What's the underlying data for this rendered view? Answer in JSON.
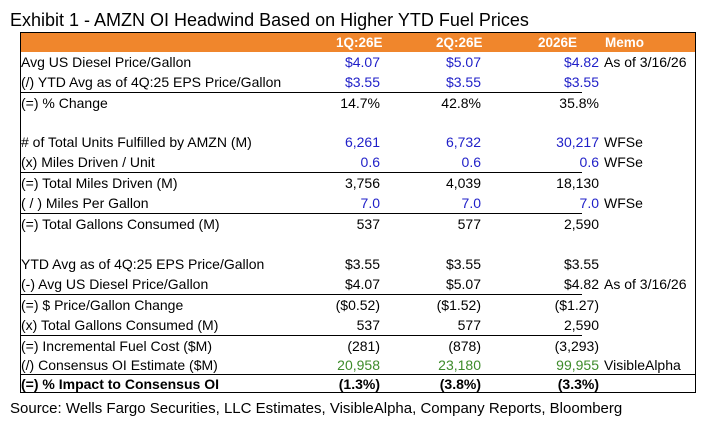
{
  "title": "Exhibit 1 - AMZN OI Headwind Based on Higher YTD Fuel Prices",
  "header": {
    "c1": "1Q:26E",
    "c2": "2Q:26E",
    "c3": "2026E",
    "memo": "Memo"
  },
  "colors": {
    "header_bg": "#f0862c",
    "input_blue": "#1f1fc8",
    "consensus_green": "#3d8b2a"
  },
  "rows": [
    {
      "label": "Avg US Diesel Price/Gallon",
      "v1": "$4.07",
      "v2": "$5.07",
      "v3": "$4.82",
      "memo": "As of 3/16/26"
    },
    {
      "label": "(/) YTD Avg as of 4Q:25 EPS Price/Gallon",
      "v1": "$3.55",
      "v2": "$3.55",
      "v3": "$3.55",
      "memo": ""
    },
    {
      "label": "(=) % Change",
      "v1": "14.7%",
      "v2": "42.8%",
      "v3": "35.8%",
      "memo": ""
    },
    {
      "label": "# of Total Units Fulfilled by AMZN (M)",
      "v1": "6,261",
      "v2": "6,732",
      "v3": "30,217",
      "memo": "WFSe"
    },
    {
      "label": "(x) Miles Driven / Unit",
      "v1": "0.6",
      "v2": "0.6",
      "v3": "0.6",
      "memo": "WFSe"
    },
    {
      "label": "(=) Total Miles Driven (M)",
      "v1": "3,756",
      "v2": "4,039",
      "v3": "18,130",
      "memo": ""
    },
    {
      "label": "( / ) Miles Per Gallon",
      "v1": "7.0",
      "v2": "7.0",
      "v3": "7.0",
      "memo": "WFSe"
    },
    {
      "label": "(=) Total Gallons Consumed (M)",
      "v1": "537",
      "v2": "577",
      "v3": "2,590",
      "memo": ""
    },
    {
      "label": "YTD Avg as of 4Q:25 EPS Price/Gallon",
      "v1": "$3.55",
      "v2": "$3.55",
      "v3": "$3.55",
      "memo": ""
    },
    {
      "label": "(-) Avg US Diesel Price/Gallon",
      "v1": "$4.07",
      "v2": "$5.07",
      "v3": "$4.82",
      "memo": "As of 3/16/26"
    },
    {
      "label": "(=) $ Price/Gallon Change",
      "v1": "($0.52)",
      "v2": "($1.52)",
      "v3": "($1.27)",
      "memo": ""
    },
    {
      "label": "(x) Total Gallons Consumed (M)",
      "v1": "537",
      "v2": "577",
      "v3": "2,590",
      "memo": ""
    },
    {
      "label": "(=) Incremental Fuel Cost ($M)",
      "v1": "(281)",
      "v2": "(878)",
      "v3": "(3,293)",
      "memo": ""
    },
    {
      "label": "(/) Consensus OI Estimate ($M)",
      "v1": "20,958",
      "v2": "23,180",
      "v3": "99,955",
      "memo": "VisibleAlpha"
    },
    {
      "label": "(=) % Impact to Consensus OI",
      "v1": "(1.3%)",
      "v2": "(3.8%)",
      "v3": "(3.3%)",
      "memo": ""
    }
  ],
  "source": "Source: Wells Fargo Securities, LLC Estimates, VisibleAlpha, Company Reports, Bloomberg"
}
